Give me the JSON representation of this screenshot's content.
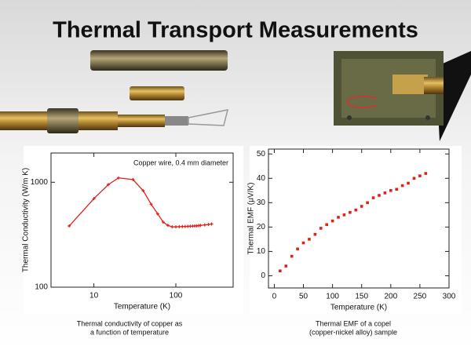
{
  "title": "Thermal Transport Measurements",
  "chart_data": [
    {
      "type": "line",
      "annotation": "Copper wire, 0.4 mm diameter",
      "x_label": "Temperature (K)",
      "y_label": "Thermal Conductivity (W/m K)",
      "caption": [
        "Thermal conductivity of copper as",
        "a function of temperature"
      ],
      "log_x": true,
      "log_y": true,
      "color": "#e0201b",
      "x": [
        5,
        10,
        15,
        20,
        30,
        40,
        50,
        60,
        70,
        80,
        90,
        100,
        110,
        120,
        130,
        140,
        150,
        160,
        170,
        180,
        190,
        200,
        225,
        250,
        273
      ],
      "values": [
        383,
        697,
        950,
        1100,
        1060,
        830,
        617,
        500,
        417,
        388,
        376,
        376,
        377,
        378,
        379,
        380,
        381,
        382,
        383,
        384,
        386,
        388,
        392,
        396,
        400
      ],
      "xlim": [
        3,
        500
      ],
      "ylim": [
        100,
        1900
      ],
      "xticks": [
        10,
        100
      ],
      "yticks": [
        100,
        1000
      ]
    },
    {
      "type": "scatter",
      "x_label": "Temperature (K)",
      "y_label": "Thermal EMF (μV/K)",
      "caption": [
        "Thermal EMF of a copel",
        "(copper-nickel alloy) sample"
      ],
      "color": "#e0201b",
      "x": [
        10,
        20,
        30,
        40,
        50,
        60,
        70,
        80,
        90,
        100,
        110,
        120,
        130,
        140,
        150,
        160,
        170,
        180,
        190,
        200,
        210,
        220,
        230,
        240,
        250,
        260
      ],
      "values": [
        2,
        4,
        8,
        11,
        13.5,
        15,
        17,
        19.5,
        21,
        22.5,
        24,
        25,
        26,
        27,
        28.5,
        30,
        32,
        33,
        34,
        35,
        35.5,
        37,
        38,
        40,
        41,
        42
      ],
      "xlim": [
        -10,
        300
      ],
      "ylim": [
        -5,
        52
      ],
      "xticks": [
        0,
        50,
        100,
        150,
        200,
        250,
        300
      ],
      "yticks": [
        0,
        10,
        20,
        30,
        40,
        50
      ]
    }
  ]
}
